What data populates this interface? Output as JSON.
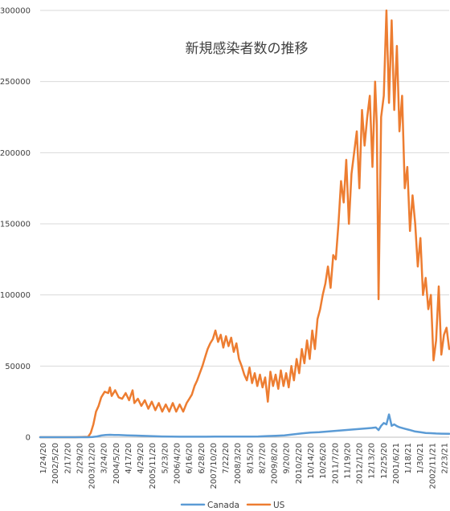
{
  "chart_data": {
    "type": "line",
    "title": "新規感染者数の推移",
    "ylim": [
      0,
      300000
    ],
    "yticks": [
      0,
      50000,
      100000,
      150000,
      200000,
      250000,
      300000
    ],
    "grid": true,
    "legend_position": "bottom",
    "x_tick_labels": [
      "1/24/20",
      "2002/5/20",
      "2/17/20",
      "2/29/20",
      "2003/12/20",
      "3/24/20",
      "2004/5/20",
      "4/17/20",
      "4/29/20",
      "2005/11/20",
      "5/23/20",
      "2006/4/20",
      "6/16/20",
      "6/28/20",
      "2007/10/20",
      "7/22/20",
      "2008/3/20",
      "8/15/20",
      "8/27/20",
      "2009/8/20",
      "9/20/20",
      "2010/2/20",
      "10/14/20",
      "10/26/20",
      "2011/7/20",
      "11/19/20",
      "2012/1/20",
      "12/13/20",
      "12/25/20",
      "2001/6/21",
      "1/18/21",
      "1/30/21",
      "2002/11/21",
      "2/23/21"
    ],
    "x_count": 400,
    "series": [
      {
        "name": "US",
        "color": "#ED7D31",
        "points": [
          [
            0,
            0
          ],
          [
            40,
            20
          ],
          [
            55,
            300
          ],
          [
            58,
            3000
          ],
          [
            61,
            9000
          ],
          [
            64,
            18000
          ],
          [
            67,
            22000
          ],
          [
            70,
            28000
          ],
          [
            74,
            32000
          ],
          [
            78,
            31000
          ],
          [
            80,
            35000
          ],
          [
            82,
            29000
          ],
          [
            86,
            33000
          ],
          [
            90,
            28000
          ],
          [
            94,
            27000
          ],
          [
            98,
            31000
          ],
          [
            102,
            26000
          ],
          [
            106,
            33000
          ],
          [
            108,
            24000
          ],
          [
            112,
            27000
          ],
          [
            116,
            22000
          ],
          [
            120,
            26000
          ],
          [
            124,
            20000
          ],
          [
            128,
            25000
          ],
          [
            132,
            19000
          ],
          [
            136,
            24000
          ],
          [
            140,
            18000
          ],
          [
            144,
            23000
          ],
          [
            148,
            18000
          ],
          [
            152,
            24000
          ],
          [
            156,
            18000
          ],
          [
            160,
            23000
          ],
          [
            164,
            18000
          ],
          [
            168,
            24000
          ],
          [
            171,
            27000
          ],
          [
            174,
            30000
          ],
          [
            177,
            36000
          ],
          [
            180,
            40000
          ],
          [
            183,
            45000
          ],
          [
            186,
            50000
          ],
          [
            189,
            56000
          ],
          [
            192,
            62000
          ],
          [
            195,
            66000
          ],
          [
            198,
            69000
          ],
          [
            201,
            75000
          ],
          [
            204,
            67000
          ],
          [
            207,
            72000
          ],
          [
            210,
            63000
          ],
          [
            213,
            71000
          ],
          [
            216,
            64000
          ],
          [
            219,
            70000
          ],
          [
            222,
            60000
          ],
          [
            225,
            66000
          ],
          [
            228,
            55000
          ],
          [
            231,
            50000
          ],
          [
            234,
            44000
          ],
          [
            237,
            40000
          ],
          [
            240,
            49000
          ],
          [
            243,
            38000
          ],
          [
            246,
            45000
          ],
          [
            249,
            36000
          ],
          [
            252,
            44000
          ],
          [
            255,
            35000
          ],
          [
            258,
            42000
          ],
          [
            261,
            25000
          ],
          [
            264,
            46000
          ],
          [
            267,
            36000
          ],
          [
            270,
            44000
          ],
          [
            273,
            34000
          ],
          [
            276,
            47000
          ],
          [
            279,
            36000
          ],
          [
            282,
            45000
          ],
          [
            285,
            35000
          ],
          [
            288,
            50000
          ],
          [
            291,
            40000
          ],
          [
            294,
            55000
          ],
          [
            297,
            45000
          ],
          [
            300,
            62000
          ],
          [
            303,
            52000
          ],
          [
            306,
            68000
          ],
          [
            309,
            55000
          ],
          [
            312,
            75000
          ],
          [
            315,
            62000
          ],
          [
            318,
            83000
          ],
          [
            321,
            90000
          ],
          [
            324,
            100000
          ],
          [
            327,
            108000
          ],
          [
            330,
            120000
          ],
          [
            333,
            105000
          ],
          [
            336,
            128000
          ],
          [
            339,
            125000
          ],
          [
            342,
            150000
          ],
          [
            345,
            180000
          ],
          [
            348,
            165000
          ],
          [
            351,
            195000
          ],
          [
            354,
            150000
          ],
          [
            357,
            185000
          ],
          [
            360,
            200000
          ],
          [
            363,
            215000
          ],
          [
            366,
            175000
          ],
          [
            369,
            230000
          ],
          [
            372,
            205000
          ],
          [
            375,
            225000
          ],
          [
            378,
            240000
          ],
          [
            381,
            190000
          ],
          [
            384,
            250000
          ],
          [
            386,
            220000
          ],
          [
            388,
            97000
          ],
          [
            391,
            225000
          ],
          [
            394,
            240000
          ],
          [
            397,
            300000
          ],
          [
            400,
            235000
          ],
          [
            403,
            293000
          ],
          [
            406,
            230000
          ],
          [
            409,
            275000
          ],
          [
            412,
            215000
          ],
          [
            415,
            240000
          ],
          [
            418,
            175000
          ],
          [
            421,
            190000
          ],
          [
            424,
            145000
          ],
          [
            427,
            170000
          ],
          [
            430,
            150000
          ],
          [
            433,
            120000
          ],
          [
            436,
            140000
          ],
          [
            439,
            100000
          ],
          [
            442,
            112000
          ],
          [
            445,
            90000
          ],
          [
            448,
            100000
          ],
          [
            451,
            54000
          ],
          [
            454,
            68000
          ],
          [
            457,
            106000
          ],
          [
            460,
            58000
          ],
          [
            463,
            72000
          ],
          [
            466,
            77000
          ],
          [
            469,
            62000
          ]
        ]
      },
      {
        "name": "Canada",
        "color": "#5B9BD5",
        "points": [
          [
            0,
            0
          ],
          [
            55,
            0
          ],
          [
            60,
            100
          ],
          [
            65,
            500
          ],
          [
            70,
            1200
          ],
          [
            75,
            1600
          ],
          [
            80,
            1700
          ],
          [
            85,
            1600
          ],
          [
            90,
            1500
          ],
          [
            95,
            1400
          ],
          [
            100,
            1300
          ],
          [
            110,
            1100
          ],
          [
            120,
            900
          ],
          [
            130,
            700
          ],
          [
            140,
            500
          ],
          [
            150,
            400
          ],
          [
            160,
            350
          ],
          [
            170,
            350
          ],
          [
            180,
            350
          ],
          [
            190,
            350
          ],
          [
            200,
            400
          ],
          [
            210,
            400
          ],
          [
            220,
            400
          ],
          [
            230,
            400
          ],
          [
            240,
            450
          ],
          [
            250,
            500
          ],
          [
            260,
            800
          ],
          [
            270,
            1000
          ],
          [
            280,
            1300
          ],
          [
            290,
            2000
          ],
          [
            300,
            2700
          ],
          [
            310,
            3200
          ],
          [
            320,
            3500
          ],
          [
            330,
            4000
          ],
          [
            340,
            4500
          ],
          [
            350,
            5000
          ],
          [
            360,
            5500
          ],
          [
            370,
            6000
          ],
          [
            380,
            6500
          ],
          [
            385,
            6800
          ],
          [
            388,
            5000
          ],
          [
            391,
            8000
          ],
          [
            394,
            10000
          ],
          [
            397,
            9000
          ],
          [
            400,
            16000
          ],
          [
            403,
            8000
          ],
          [
            406,
            9000
          ],
          [
            409,
            7800
          ],
          [
            412,
            7000
          ],
          [
            418,
            6000
          ],
          [
            424,
            5000
          ],
          [
            430,
            4000
          ],
          [
            436,
            3500
          ],
          [
            442,
            3000
          ],
          [
            448,
            2800
          ],
          [
            454,
            2600
          ],
          [
            460,
            2500
          ],
          [
            469,
            2400
          ]
        ]
      }
    ]
  }
}
